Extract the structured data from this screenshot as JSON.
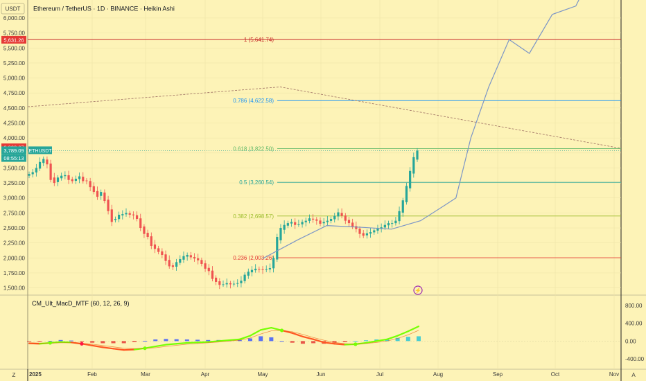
{
  "header": {
    "currency_button": "USDT",
    "title": "Ethereum / TetherUS · 1D · BINANCE · Heikin Ashi"
  },
  "footer": {
    "left_button": "Z",
    "right_button": "A"
  },
  "colors": {
    "background": "#fdf3b7",
    "up": "#26a69a",
    "down": "#ef5350",
    "projection": "#7b95c7",
    "fib_1": "#c62828",
    "fib_786": "#2196f3",
    "fib_618": "#66bb6a",
    "fib_5": "#26a69a",
    "fib_382": "#9bbc2a",
    "fib_236": "#e53935"
  },
  "chart_data": [
    {
      "type": "candlestick",
      "title": "Ethereum / TetherUS · 1D · BINANCE · Heikin Ashi",
      "symbol": "ETHUSDT",
      "ylim": [
        1380,
        6300
      ],
      "y_ticks": [
        "1,500.00",
        "1,750.00",
        "2,000.00",
        "2,250.00",
        "2,500.00",
        "2,750.00",
        "3,000.00",
        "3,250.00",
        "3,500.00",
        "3,750.00",
        "4,000.00",
        "4,250.00",
        "4,500.00",
        "4,750.00",
        "5,000.00",
        "5,250.00",
        "5,500.00",
        "5,750.00",
        "6,000.00"
      ],
      "y_tick_values": [
        1500,
        1750,
        2000,
        2250,
        2500,
        2750,
        3000,
        3250,
        3500,
        3750,
        4000,
        4250,
        4500,
        4750,
        5000,
        5250,
        5500,
        5750,
        6000
      ],
      "x_ticks": [
        "2025",
        "Feb",
        "Mar",
        "Apr",
        "May",
        "Jun",
        "Jul",
        "Aug",
        "Sep",
        "Oct",
        "Nov"
      ],
      "price_badges": [
        {
          "label": "5,631.26",
          "value": 5631.26,
          "color": "#e53935"
        },
        {
          "label": "3,838.67",
          "value": 3838.67,
          "color": "#e53935"
        },
        {
          "label": "3,789.09",
          "value": 3789.09,
          "color": "#26a69a"
        },
        {
          "label": "08:55:13",
          "value": 3660,
          "color": "#26a69a"
        }
      ],
      "symbol_badge": "ETHUSDT",
      "fib_levels": [
        {
          "label": "1 (5,641.74)",
          "value": 5641.74
        },
        {
          "label": "0.786 (4,622.58)",
          "value": 4622.58
        },
        {
          "label": "0.618 (3,822.50)",
          "value": 3822.5
        },
        {
          "label": "0.5 (3,260.54)",
          "value": 3260.54
        },
        {
          "label": "0.382 (2,698.57)",
          "value": 2698.57
        },
        {
          "label": "0.236 (2,003.26)",
          "value": 2003.26
        }
      ],
      "trend_line": {
        "points": [
          [
            0,
            4520
          ],
          [
            4.3,
            4850
          ],
          [
            10.1,
            3830
          ]
        ]
      },
      "projection": [
        [
          4.0,
          1990
        ],
        [
          4.6,
          2300
        ],
        [
          5.1,
          2540
        ],
        [
          5.7,
          2510
        ],
        [
          6.2,
          2480
        ],
        [
          6.7,
          2620
        ],
        [
          7.1,
          2870
        ],
        [
          7.3,
          3000
        ],
        [
          7.55,
          4000
        ],
        [
          7.85,
          4850
        ],
        [
          8.2,
          5640
        ],
        [
          8.55,
          5410
        ],
        [
          8.95,
          6060
        ],
        [
          9.35,
          6200
        ],
        [
          9.6,
          6700
        ]
      ],
      "candles_close": [
        3400,
        3430,
        3500,
        3600,
        3650,
        3560,
        3300,
        3250,
        3340,
        3370,
        3380,
        3300,
        3280,
        3320,
        3360,
        3280,
        3280,
        3180,
        3100,
        3020,
        3100,
        2950,
        2780,
        2600,
        2650,
        2720,
        2730,
        2750,
        2720,
        2710,
        2650,
        2500,
        2400,
        2350,
        2200,
        2150,
        2100,
        2050,
        1950,
        1860,
        1850,
        1930,
        1980,
        2030,
        2050,
        2010,
        1990,
        1960,
        1900,
        1820,
        1780,
        1650,
        1600,
        1550,
        1560,
        1580,
        1560,
        1570,
        1580,
        1620,
        1720,
        1770,
        1800,
        1820,
        1810,
        1800,
        1810,
        1830,
        2000,
        2350,
        2500,
        2550,
        2580,
        2600,
        2550,
        2560,
        2600,
        2620,
        2660,
        2640,
        2620,
        2570,
        2600,
        2620,
        2650,
        2700,
        2760,
        2700,
        2620,
        2580,
        2520,
        2480,
        2400,
        2370,
        2410,
        2430,
        2460,
        2500,
        2510,
        2550,
        2580,
        2580,
        2620,
        2780,
        2960,
        3200,
        3450,
        3680,
        3790
      ]
    },
    {
      "type": "line",
      "title": "CM_Ult_MacD_MTF (60, 12, 26, 9)",
      "ylim": [
        -600,
        1000
      ],
      "y_ticks": [
        "800.00",
        "400.00",
        "0.00",
        "-400.00"
      ],
      "y_tick_values": [
        800,
        400,
        0,
        -400
      ],
      "series": [
        {
          "name": "MACD",
          "values": [
            -50,
            -60,
            -40,
            -20,
            -30,
            -60,
            -100,
            -140,
            -170,
            -200,
            -190,
            -160,
            -120,
            -80,
            -60,
            -40,
            -30,
            -20,
            0,
            20,
            40,
            120,
            250,
            300,
            240,
            180,
            100,
            40,
            -30,
            -60,
            -80,
            -70,
            -40,
            0,
            40,
            120,
            220,
            330
          ]
        },
        {
          "name": "Signal",
          "values": [
            -40,
            -45,
            -45,
            -40,
            -40,
            -50,
            -70,
            -100,
            -130,
            -160,
            -170,
            -165,
            -150,
            -120,
            -95,
            -70,
            -55,
            -40,
            -20,
            0,
            20,
            70,
            160,
            230,
            240,
            210,
            150,
            80,
            20,
            -30,
            -60,
            -70,
            -55,
            -30,
            0,
            60,
            140,
            240
          ]
        }
      ]
    }
  ]
}
